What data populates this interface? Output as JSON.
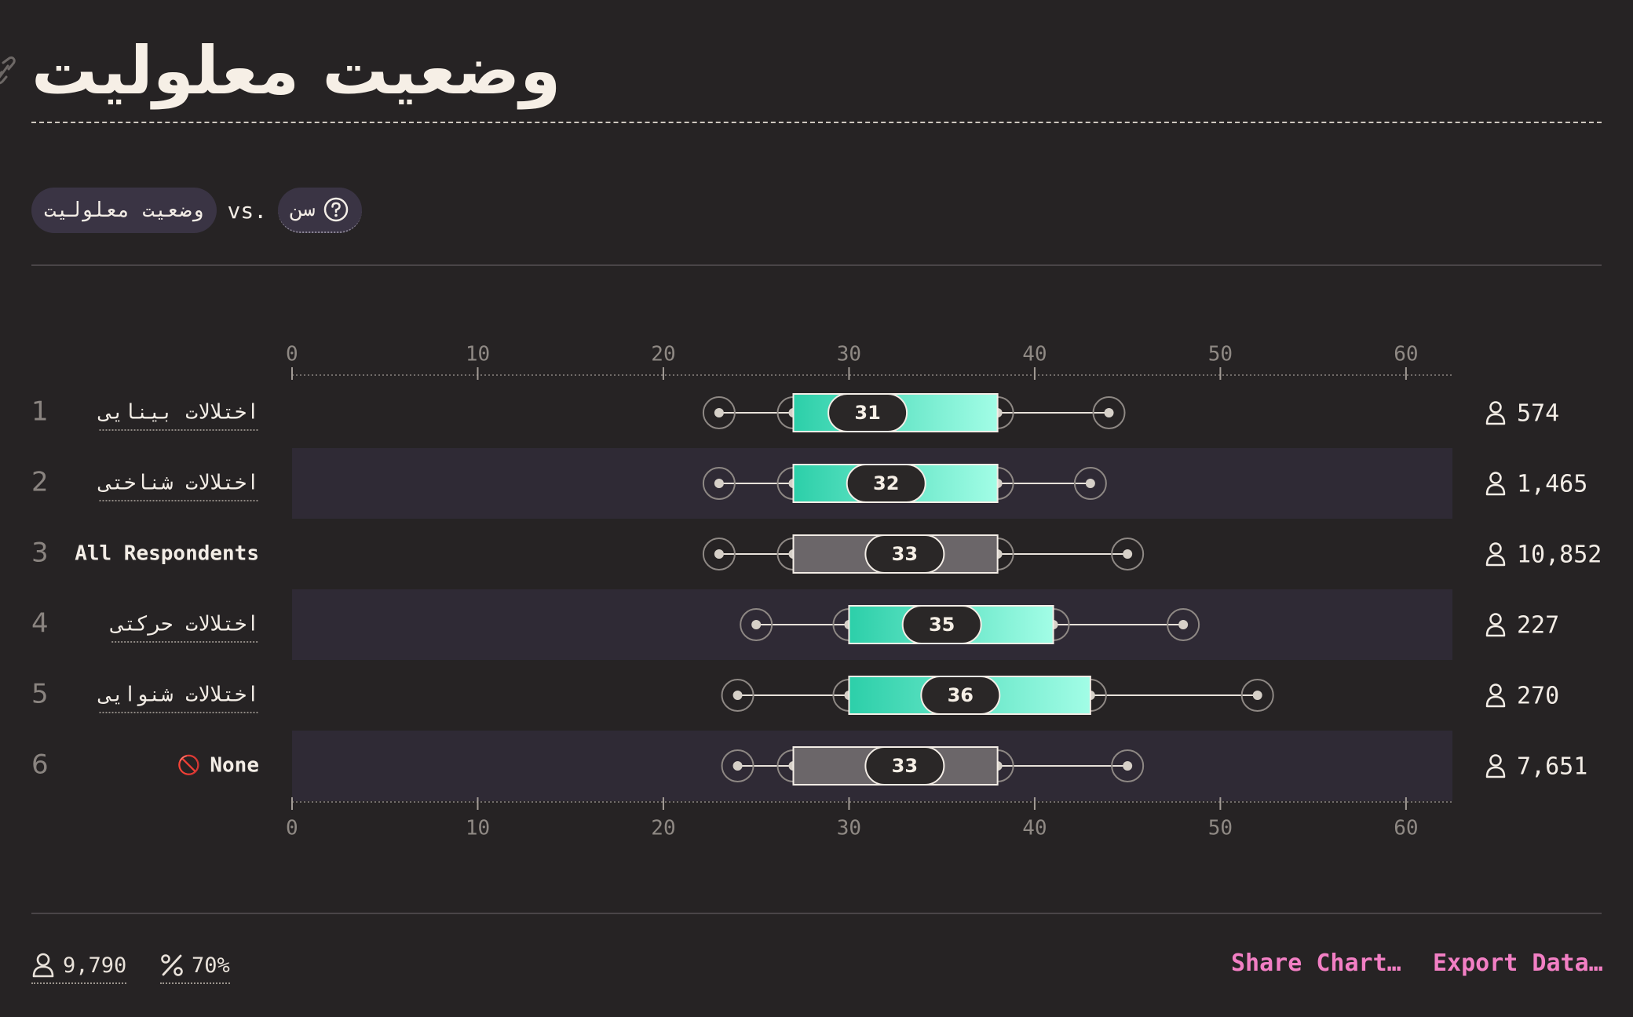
{
  "header": {
    "title": "وضعیت معلولیت"
  },
  "filters": {
    "variable": "وضعیت معلولیت",
    "vs_label": "vs.",
    "comparison": "سن",
    "help_icon": "question-circle-icon"
  },
  "chart_data": {
    "type": "boxplot",
    "title": "",
    "xlabel": "",
    "ylabel": "",
    "x_ticks": [
      0,
      10,
      20,
      30,
      40,
      50,
      60
    ],
    "xlim": [
      0,
      62.5
    ],
    "grid": false,
    "legend": "none",
    "rows": [
      {
        "rank": "1",
        "label": "اختلالات بینایی",
        "style": "colored",
        "bold": false,
        "icon": "",
        "whisker_low": 23,
        "q1": 27,
        "median": 31,
        "q3": 38,
        "whisker_high": 44,
        "count": "574"
      },
      {
        "rank": "2",
        "label": "اختلالات شناختی",
        "style": "colored",
        "bold": false,
        "icon": "",
        "whisker_low": 23,
        "q1": 27,
        "median": 32,
        "q3": 38,
        "whisker_high": 43,
        "count": "1,465"
      },
      {
        "rank": "3",
        "label": "All Respondents",
        "style": "neutral",
        "bold": true,
        "icon": "",
        "whisker_low": 23,
        "q1": 27,
        "median": 33,
        "q3": 38,
        "whisker_high": 45,
        "count": "10,852"
      },
      {
        "rank": "4",
        "label": "اختلالات حرکتی",
        "style": "colored",
        "bold": false,
        "icon": "",
        "whisker_low": 25,
        "q1": 30,
        "median": 35,
        "q3": 41,
        "whisker_high": 48,
        "count": "227"
      },
      {
        "rank": "5",
        "label": "اختلالات شنوایی",
        "style": "colored",
        "bold": false,
        "icon": "",
        "whisker_low": 24,
        "q1": 30,
        "median": 36,
        "q3": 43,
        "whisker_high": 52,
        "count": "270"
      },
      {
        "rank": "6",
        "label": "None",
        "style": "neutral",
        "bold": true,
        "icon": "🚫",
        "whisker_low": 24,
        "q1": 27,
        "median": 33,
        "q3": 38,
        "whisker_high": 45,
        "count": "7,651"
      }
    ]
  },
  "colors": {
    "background": "#262324",
    "band": "#2f2a35",
    "box_start": "#2ccfa9",
    "box_end": "#a2fde6",
    "neutral_box": "#6b6669",
    "accent": "#f27fc4",
    "text": "#f3ede6",
    "muted": "#8a8480"
  },
  "footer": {
    "respondents": "9,790",
    "percent": "70%",
    "share_label": "Share Chart…",
    "export_label": "Export Data…"
  }
}
